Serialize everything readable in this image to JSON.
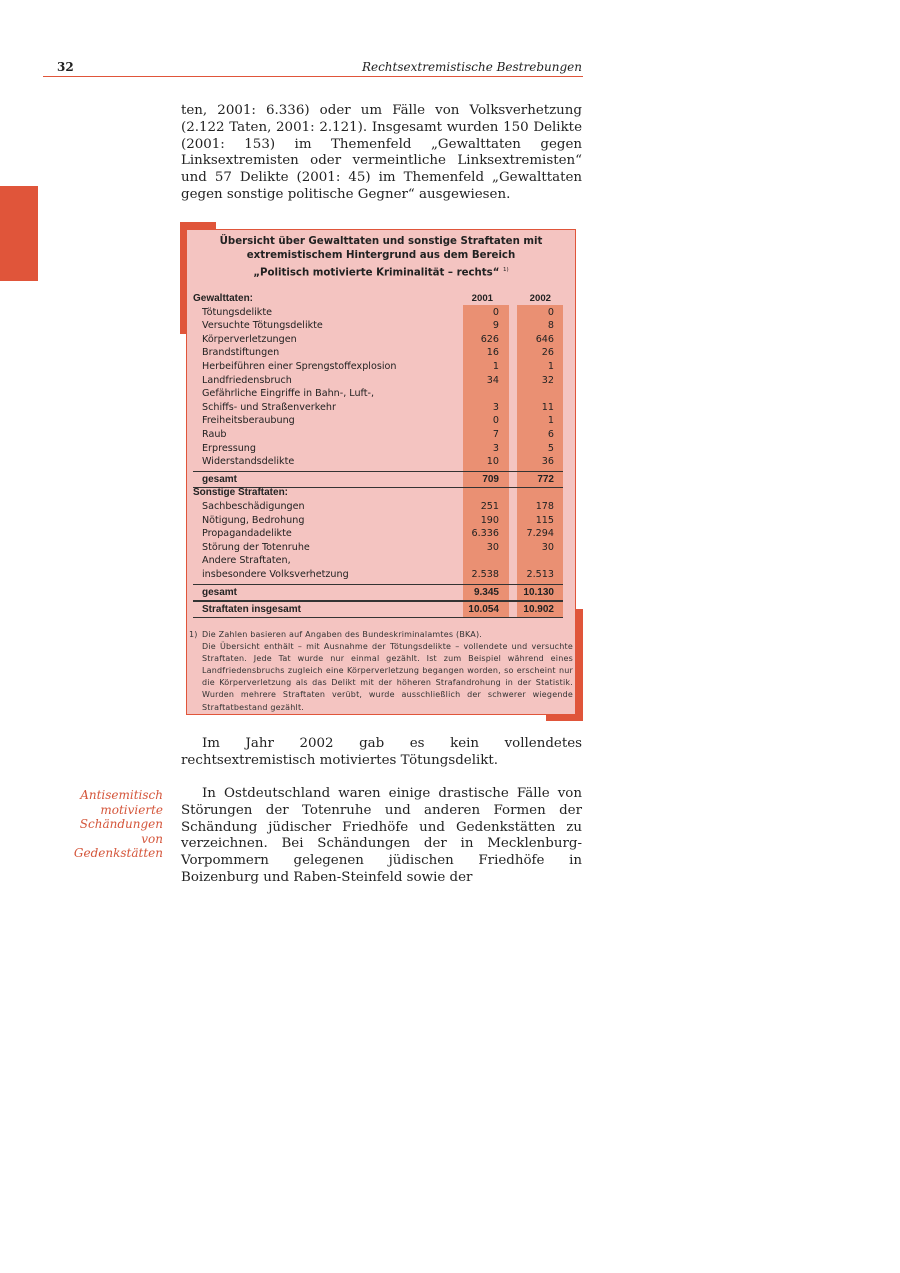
{
  "header": {
    "page_number": "32",
    "running_title": "Rechtsextremistische Bestrebungen"
  },
  "paragraphs": [
    "ten, 2001: 6.336) oder um Fälle von Volksverhetzung (2.122 Taten, 2001: 2.121). Insgesamt wurden 150 Delikte (2001: 153) im Themenfeld „Gewalttaten gegen Linksextremisten oder vermeintliche Linksextremisten“ und 57 Delikte (2001: 45) im Themenfeld „Gewalttaten gegen sonstige politische Gegner“ ausgewiesen.",
    "Im Jahr 2002 gab es kein vollendetes rechtsextremistisch motiviertes Tötungsdelikt.",
    "In Ostdeutschland waren einige drastische Fälle von Störungen der Totenruhe und anderen Formen der Schändung jüdischer Friedhöfe und Gedenkstätten zu verzeichnen. Bei Schändungen der in Mecklenburg-Vorpommern gelegenen jüdischen Friedhöfe in Boizenburg und Raben-Steinfeld sowie der"
  ],
  "margin_note": "Antisemitisch motivierte Schändungen von Gedenkstätten",
  "colors": {
    "accent": "#e0553a",
    "box_bg": "#f4c4c1",
    "column_bg": "#ea9073"
  },
  "table": {
    "title_lines": [
      "Übersicht über Gewalttaten und sonstige Straftaten mit",
      "extremistischem Hintergrund aus dem Bereich",
      "„Politisch motivierte Kriminalität – rechts“"
    ],
    "title_footnote_mark": "1)",
    "columns": [
      "2001",
      "2002"
    ],
    "rows": [
      {
        "type": "hdr",
        "label": "Gewalttaten:",
        "v1": "2001",
        "v2": "2002"
      },
      {
        "label": "Tötungsdelikte",
        "v1": "0",
        "v2": "0"
      },
      {
        "label": "Versuchte Tötungsdelikte",
        "v1": "9",
        "v2": "8"
      },
      {
        "label": "Körperverletzungen",
        "v1": "626",
        "v2": "646"
      },
      {
        "label": "Brandstiftungen",
        "v1": "16",
        "v2": "26"
      },
      {
        "label": "Herbeiführen einer Sprengstoffexplosion",
        "v1": "1",
        "v2": "1"
      },
      {
        "label": "Landfriedensbruch",
        "v1": "34",
        "v2": "32"
      },
      {
        "label": "Gefährliche Eingriffe in Bahn-, Luft-,",
        "v1": "",
        "v2": ""
      },
      {
        "label": "Schiffs- und Straßenverkehr",
        "v1": "3",
        "v2": "11"
      },
      {
        "label": "Freiheitsberaubung",
        "v1": "0",
        "v2": "1"
      },
      {
        "label": "Raub",
        "v1": "7",
        "v2": "6"
      },
      {
        "label": "Erpressung",
        "v1": "3",
        "v2": "5"
      },
      {
        "label": "Widerstandsdelikte",
        "v1": "10",
        "v2": "36"
      },
      {
        "type": "tot",
        "label": "gesamt",
        "v1": "709",
        "v2": "772"
      },
      {
        "type": "hdr",
        "label": "Sonstige Straftaten:",
        "v1": "",
        "v2": ""
      },
      {
        "label": "Sachbeschädigungen",
        "v1": "251",
        "v2": "178"
      },
      {
        "label": "Nötigung, Bedrohung",
        "v1": "190",
        "v2": "115"
      },
      {
        "label": "Propagandadelikte",
        "v1": "6.336",
        "v2": "7.294"
      },
      {
        "label": "Störung der Totenruhe",
        "v1": "30",
        "v2": "30"
      },
      {
        "label": "Andere Straftaten,",
        "v1": "",
        "v2": ""
      },
      {
        "label": "insbesondere Volksverhetzung",
        "v1": "2.538",
        "v2": "2.513"
      },
      {
        "type": "tot",
        "label": "gesamt",
        "v1": "9.345",
        "v2": "10.130"
      },
      {
        "type": "tot",
        "label": "Straftaten insgesamt",
        "v1": "10.054",
        "v2": "10.902"
      }
    ],
    "footnote": {
      "mark": "1)",
      "lines": [
        "Die Zahlen basieren auf Angaben des Bundeskriminalamtes (BKA).",
        "Die Übersicht enthält – mit Ausnahme der Tötungsdelikte – vollendete und versuchte Straftaten. Jede Tat wurde nur einmal gezählt. Ist zum Beispiel während eines Landfriedensbruchs zugleich eine Körperverletzung begangen worden, so erscheint nur die Körperverletzung als das Delikt mit der höheren Strafandrohung in der Statistik. Wurden mehrere Straftaten verübt, wurde ausschließlich der schwerer wiegende Straftatbestand gezählt."
      ]
    }
  }
}
